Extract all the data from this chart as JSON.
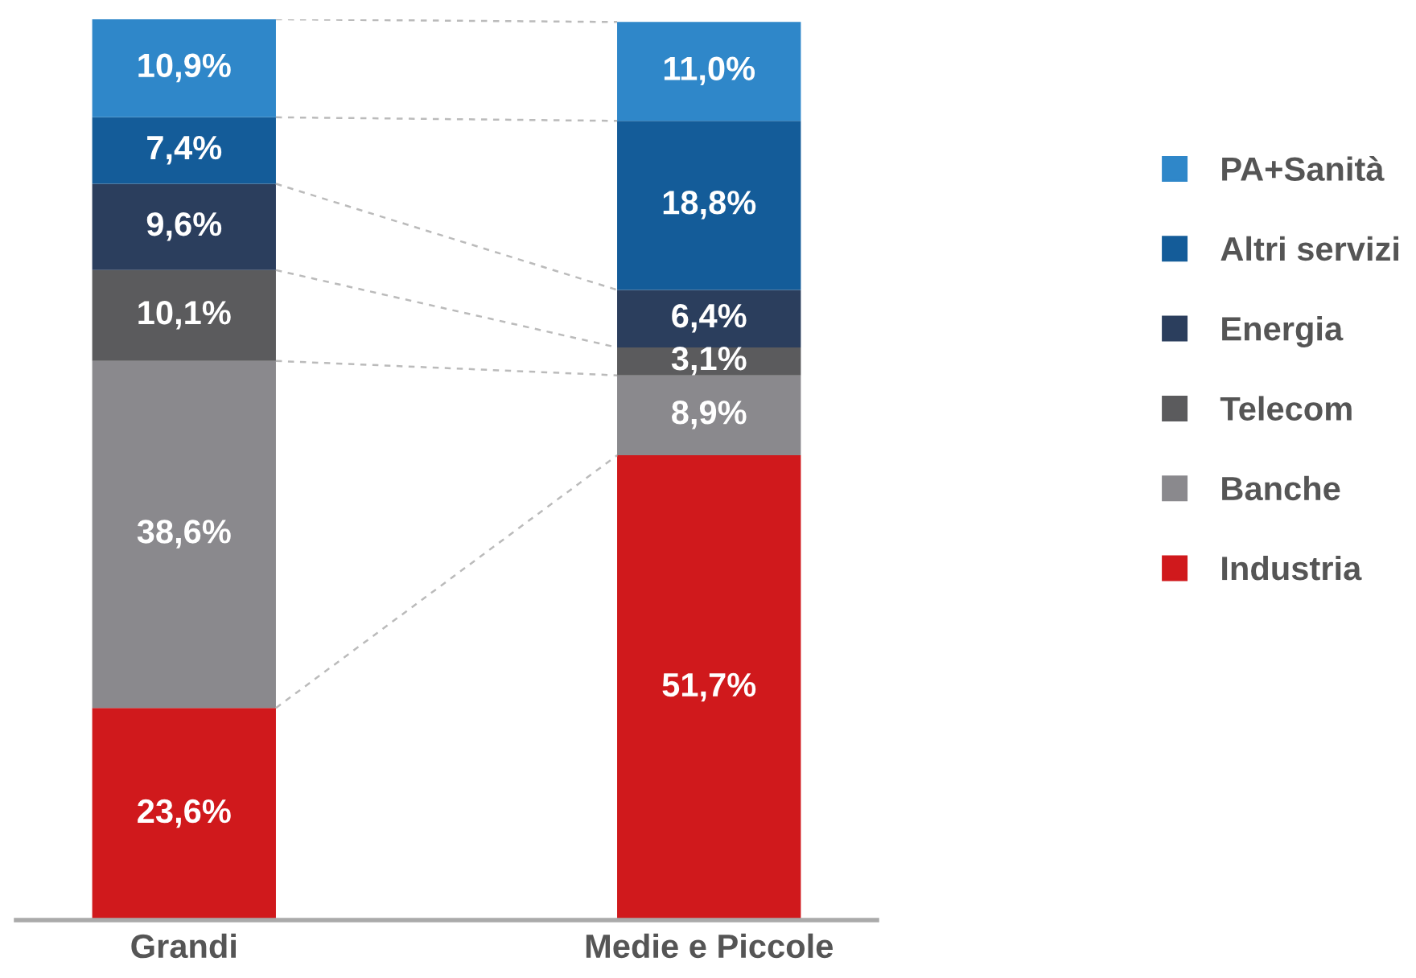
{
  "chart_data": {
    "type": "bar",
    "stacked": true,
    "categories": [
      "Grandi",
      "Medie e Piccole"
    ],
    "legend": "right",
    "grid": false,
    "series": [
      {
        "name": "Industria",
        "color": "#d0191c",
        "values": [
          23.6,
          51.7
        ],
        "value_labels": [
          "23,6%",
          "51,7%"
        ]
      },
      {
        "name": "Banche",
        "color": "#8a898d",
        "values": [
          38.6,
          8.9
        ],
        "value_labels": [
          "38,6%",
          "8,9%"
        ]
      },
      {
        "name": "Telecom",
        "color": "#5b5b5d",
        "values": [
          10.1,
          3.1
        ],
        "value_labels": [
          "10,1%",
          "3,1%"
        ]
      },
      {
        "name": "Energia",
        "color": "#2b3e5d",
        "values": [
          9.6,
          6.4
        ],
        "value_labels": [
          "9,6%",
          "6,4%"
        ]
      },
      {
        "name": "Altri servizi",
        "color": "#145c99",
        "values": [
          7.4,
          18.8
        ],
        "value_labels": [
          "7,4%",
          "18,8%"
        ]
      },
      {
        "name": "PA+Sanità",
        "color": "#2f87c9",
        "values": [
          10.9,
          11.0
        ],
        "value_labels": [
          "10,9%",
          "11,0%"
        ]
      }
    ]
  }
}
